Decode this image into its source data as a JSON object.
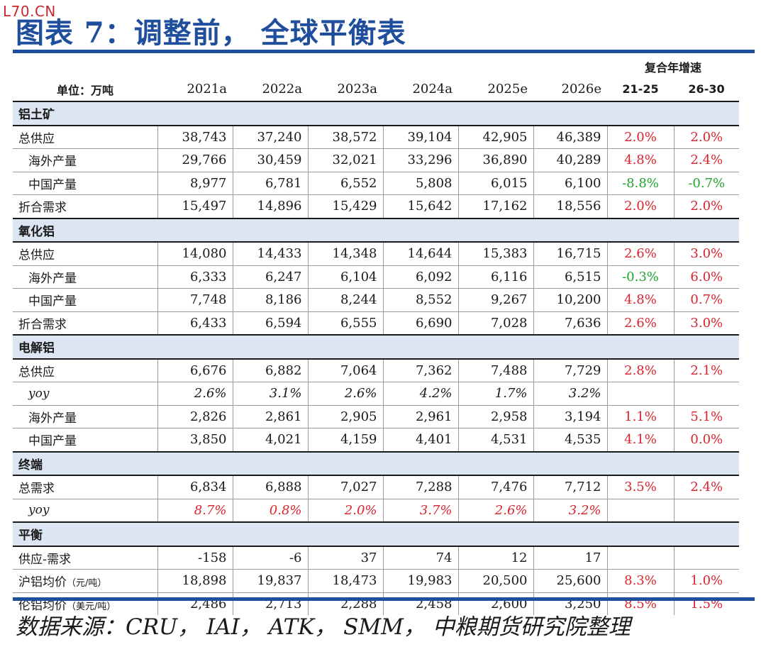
{
  "watermark": "L70.CN",
  "title": "图表 7：调整前， 全球平衡表",
  "header": {
    "cagr_title": "复合年增速",
    "unit_label": "单位：万吨",
    "years": [
      "2021a",
      "2022a",
      "2023a",
      "2024a",
      "2025e",
      "2026e"
    ],
    "cagr_cols": [
      "21-25",
      "26-30"
    ]
  },
  "sections": [
    {
      "name": "铝土矿",
      "rows": [
        {
          "label": "总供应",
          "values": [
            "38,743",
            "37,240",
            "38,572",
            "39,104",
            "42,905",
            "46,389"
          ],
          "cagr": [
            "2.0%",
            "2.0%"
          ]
        },
        {
          "label": "海外产量",
          "values": [
            "29,766",
            "30,459",
            "32,021",
            "33,296",
            "36,890",
            "40,289"
          ],
          "cagr": [
            "4.8%",
            "2.4%"
          ]
        },
        {
          "label": "中国产量",
          "values": [
            "8,977",
            "6,781",
            "6,552",
            "5,808",
            "6,015",
            "6,100"
          ],
          "cagr": [
            "-8.8%",
            "-0.7%"
          ]
        },
        {
          "label": "折合需求",
          "values": [
            "15,497",
            "14,896",
            "15,429",
            "15,642",
            "17,162",
            "18,556"
          ],
          "cagr": [
            "2.0%",
            "2.0%"
          ]
        }
      ]
    },
    {
      "name": "氧化铝",
      "rows": [
        {
          "label": "总供应",
          "values": [
            "14,080",
            "14,433",
            "14,348",
            "14,644",
            "15,383",
            "16,715"
          ],
          "cagr": [
            "2.6%",
            "3.0%"
          ]
        },
        {
          "label": "海外产量",
          "values": [
            "6,333",
            "6,247",
            "6,104",
            "6,092",
            "6,116",
            "6,515"
          ],
          "cagr": [
            "-0.3%",
            "6.0%"
          ]
        },
        {
          "label": "中国产量",
          "values": [
            "7,748",
            "8,186",
            "8,244",
            "8,552",
            "9,267",
            "10,200"
          ],
          "cagr": [
            "4.8%",
            "0.7%"
          ]
        },
        {
          "label": "折合需求",
          "values": [
            "6,433",
            "6,594",
            "6,555",
            "6,690",
            "7,028",
            "7,636"
          ],
          "cagr": [
            "2.6%",
            "3.0%"
          ]
        }
      ]
    },
    {
      "name": "电解铝",
      "rows": [
        {
          "label": "总供应",
          "values": [
            "6,676",
            "6,882",
            "7,064",
            "7,362",
            "7,488",
            "7,729"
          ],
          "cagr": [
            "2.8%",
            "2.1%"
          ]
        },
        {
          "label": "yoy",
          "values": [
            "2.6%",
            "3.1%",
            "2.6%",
            "4.2%",
            "1.7%",
            "3.2%"
          ],
          "cagr": [
            "",
            ""
          ]
        },
        {
          "label": "海外产量",
          "values": [
            "2,826",
            "2,861",
            "2,905",
            "2,961",
            "2,958",
            "3,194"
          ],
          "cagr": [
            "1.1%",
            "5.1%"
          ]
        },
        {
          "label": "中国产量",
          "values": [
            "3,850",
            "4,021",
            "4,159",
            "4,401",
            "4,531",
            "4,535"
          ],
          "cagr": [
            "4.1%",
            "0.0%"
          ]
        }
      ]
    },
    {
      "name": "终端",
      "rows": [
        {
          "label": "总需求",
          "values": [
            "6,834",
            "6,888",
            "7,027",
            "7,288",
            "7,476",
            "7,712"
          ],
          "cagr": [
            "3.5%",
            "2.4%"
          ]
        },
        {
          "label": "yoy",
          "values": [
            "8.7%",
            "0.8%",
            "2.0%",
            "3.7%",
            "2.6%",
            "3.2%"
          ],
          "cagr": [
            "",
            ""
          ]
        }
      ]
    },
    {
      "name": "平衡",
      "rows": [
        {
          "label": "供应-需求",
          "values": [
            "-158",
            "-6",
            "37",
            "74",
            "12",
            "17"
          ],
          "cagr": [
            "",
            ""
          ]
        },
        {
          "label": "沪铝均价",
          "label_unit": "（元/吨）",
          "values": [
            "18,898",
            "19,837",
            "18,473",
            "19,983",
            "20,500",
            "25,600"
          ],
          "cagr": [
            "8.3%",
            "1.0%"
          ]
        },
        {
          "label": "伦铝均价",
          "label_unit": "（美元/吨）",
          "values": [
            "2,486",
            "2,713",
            "2,288",
            "2,458",
            "2,600",
            "3,250"
          ],
          "cagr": [
            "8.5%",
            "1.5%"
          ]
        }
      ]
    }
  ],
  "source": "数据来源：CRU， IAI， ATK， SMM， 中粮期货研究院整理",
  "colors": {
    "title_blue": "#1f4e9c",
    "positive_red": "#d9232d",
    "negative_green": "#1fa52a",
    "section_bg": "#dce6f2"
  }
}
